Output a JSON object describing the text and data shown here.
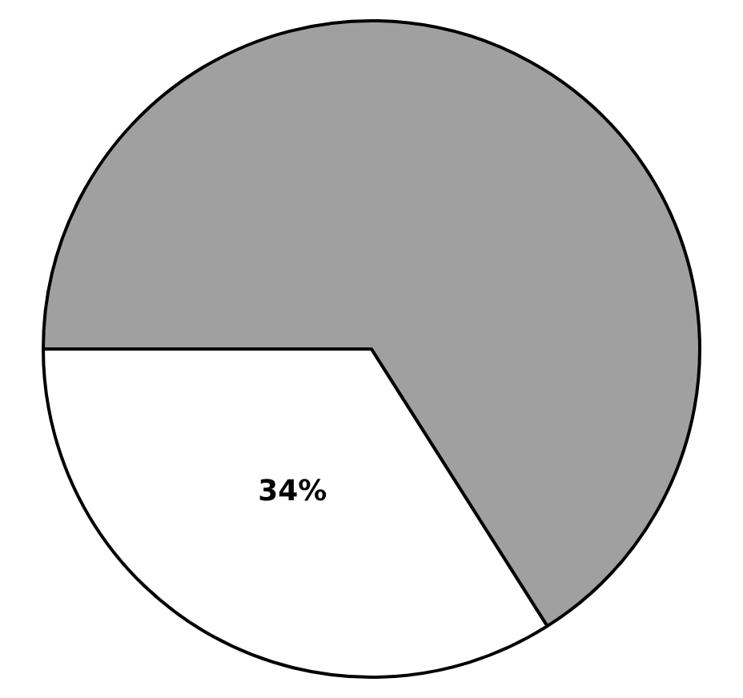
{
  "chart_data": {
    "type": "pie",
    "categories": [
      null,
      null
    ],
    "values": [
      34,
      66
    ],
    "colors": [
      "#ffffff",
      "#a0a0a0"
    ],
    "value_labels": [
      "34%",
      null
    ]
  }
}
